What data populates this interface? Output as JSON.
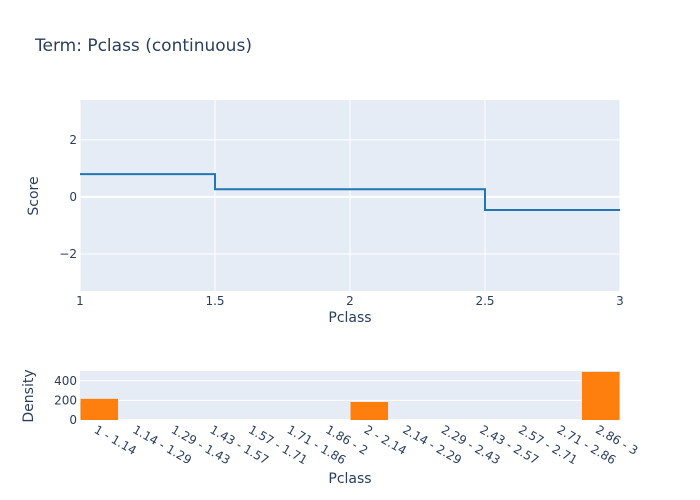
{
  "title": "Term: Pclass (continuous)",
  "chart_data": [
    {
      "type": "line",
      "line_shape": "step",
      "title": "Term: Pclass (continuous)",
      "xlabel": "Pclass",
      "ylabel": "Score",
      "xlim": [
        1,
        3
      ],
      "ylim": [
        -3.3,
        3.4
      ],
      "x_ticks": [
        "1",
        "1.5",
        "2",
        "2.5",
        "3"
      ],
      "y_ticks": [
        "−2",
        "0",
        "2"
      ],
      "grid": true,
      "series": [
        {
          "color": "#1f77b4",
          "x": [
            1,
            1.5,
            1.5,
            2.5,
            2.5,
            3
          ],
          "y": [
            0.8,
            0.8,
            0.27,
            0.27,
            -0.46,
            -0.46
          ]
        }
      ]
    },
    {
      "type": "bar",
      "xlabel": "Pclass",
      "ylabel": "Density",
      "ylim": [
        0,
        500
      ],
      "y_ticks": [
        "0",
        "200",
        "400"
      ],
      "grid": true,
      "categories": [
        "1 - 1.14",
        "1.14 - 1.29",
        "1.29 - 1.43",
        "1.43 - 1.57",
        "1.57 - 1.71",
        "1.71 - 1.86",
        "1.86 - 2",
        "2 - 2.14",
        "2.14 - 2.29",
        "2.29 - 2.43",
        "2.43 - 2.57",
        "2.57 - 2.71",
        "2.71 - 2.86",
        "2.86 - 3"
      ],
      "values": [
        216,
        0,
        0,
        0,
        0,
        0,
        0,
        184,
        0,
        0,
        0,
        0,
        0,
        491
      ],
      "color": "#ff7f0e"
    }
  ]
}
